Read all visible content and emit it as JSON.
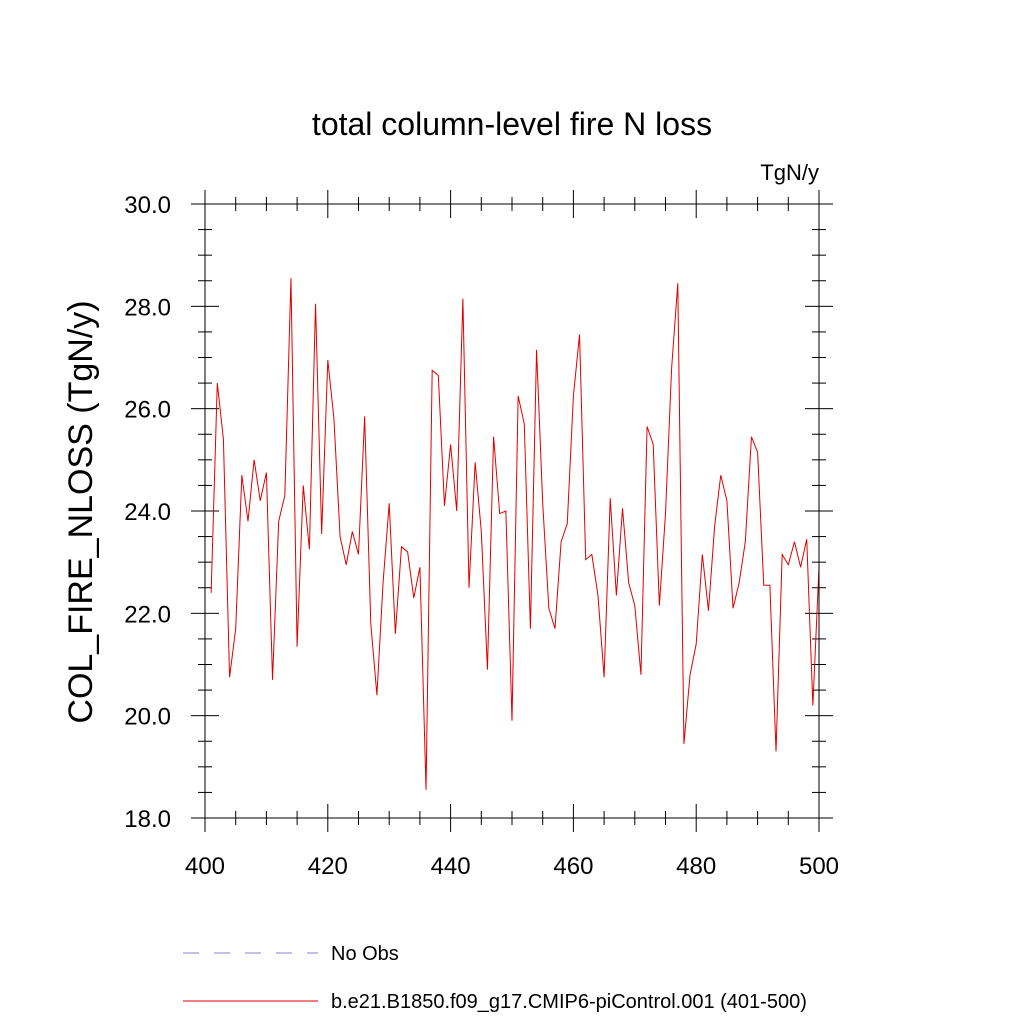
{
  "chart_data": {
    "type": "line",
    "title": "total column-level fire N loss",
    "units": "TgN/y",
    "xlabel": "",
    "ylabel": "COL_FIRE_NLOSS  (TgN/y)",
    "xlim": [
      400,
      500
    ],
    "ylim": [
      18.0,
      30.0
    ],
    "x_ticks": [
      400,
      420,
      440,
      460,
      480,
      500
    ],
    "x_tick_labels": [
      "400",
      "420",
      "440",
      "460",
      "480",
      "500"
    ],
    "y_ticks": [
      18.0,
      20.0,
      22.0,
      24.0,
      26.0,
      28.0,
      30.0
    ],
    "y_tick_labels": [
      "18.0",
      "20.0",
      "22.0",
      "24.0",
      "26.0",
      "28.0",
      "30.0"
    ],
    "legend": [
      {
        "label": "No Obs",
        "style": "dashed",
        "color": "#8a7fd0"
      },
      {
        "label": "b.e21.B1850.f09_g17.CMIP6-piControl.001 (401-500)",
        "style": "solid",
        "color": "#e00000"
      }
    ],
    "series": [
      {
        "name": "b.e21.B1850.f09_g17.CMIP6-piControl.001 (401-500)",
        "color": "#e00000",
        "x": [
          401,
          402,
          403,
          404,
          405,
          406,
          407,
          408,
          409,
          410,
          411,
          412,
          413,
          414,
          415,
          416,
          417,
          418,
          419,
          420,
          421,
          422,
          423,
          424,
          425,
          426,
          427,
          428,
          429,
          430,
          431,
          432,
          433,
          434,
          435,
          436,
          437,
          438,
          439,
          440,
          441,
          442,
          443,
          444,
          445,
          446,
          447,
          448,
          449,
          450,
          451,
          452,
          453,
          454,
          455,
          456,
          457,
          458,
          459,
          460,
          461,
          462,
          463,
          464,
          465,
          466,
          467,
          468,
          469,
          470,
          471,
          472,
          473,
          474,
          475,
          476,
          477,
          478,
          479,
          480,
          481,
          482,
          483,
          484,
          485,
          486,
          487,
          488,
          489,
          490,
          491,
          492,
          493,
          494,
          495,
          496,
          497,
          498,
          499,
          500
        ],
        "values": [
          22.4,
          26.5,
          25.4,
          20.75,
          21.7,
          24.7,
          23.8,
          25.0,
          24.2,
          24.75,
          20.7,
          23.8,
          24.3,
          28.55,
          21.35,
          24.5,
          23.25,
          28.05,
          23.55,
          26.95,
          25.8,
          23.5,
          22.95,
          23.6,
          23.15,
          25.85,
          21.8,
          20.4,
          22.6,
          24.15,
          21.6,
          23.3,
          23.2,
          22.3,
          22.9,
          18.55,
          26.75,
          26.65,
          24.1,
          25.3,
          24.0,
          28.15,
          22.5,
          24.95,
          23.6,
          20.9,
          25.45,
          23.95,
          24.0,
          19.9,
          26.25,
          25.7,
          21.7,
          27.15,
          24.15,
          22.1,
          21.7,
          23.4,
          23.75,
          26.25,
          27.45,
          23.05,
          23.15,
          22.35,
          20.75,
          24.25,
          22.35,
          24.05,
          22.6,
          22.15,
          20.8,
          25.65,
          25.3,
          22.15,
          23.95,
          26.8,
          28.45,
          19.45,
          20.8,
          21.4,
          23.15,
          22.05,
          23.7,
          24.7,
          24.2,
          22.1,
          22.6,
          23.4,
          25.45,
          25.15,
          22.55,
          22.55,
          19.3,
          23.15,
          22.95,
          23.4,
          22.9,
          23.45,
          20.2,
          22.9
        ]
      }
    ]
  }
}
